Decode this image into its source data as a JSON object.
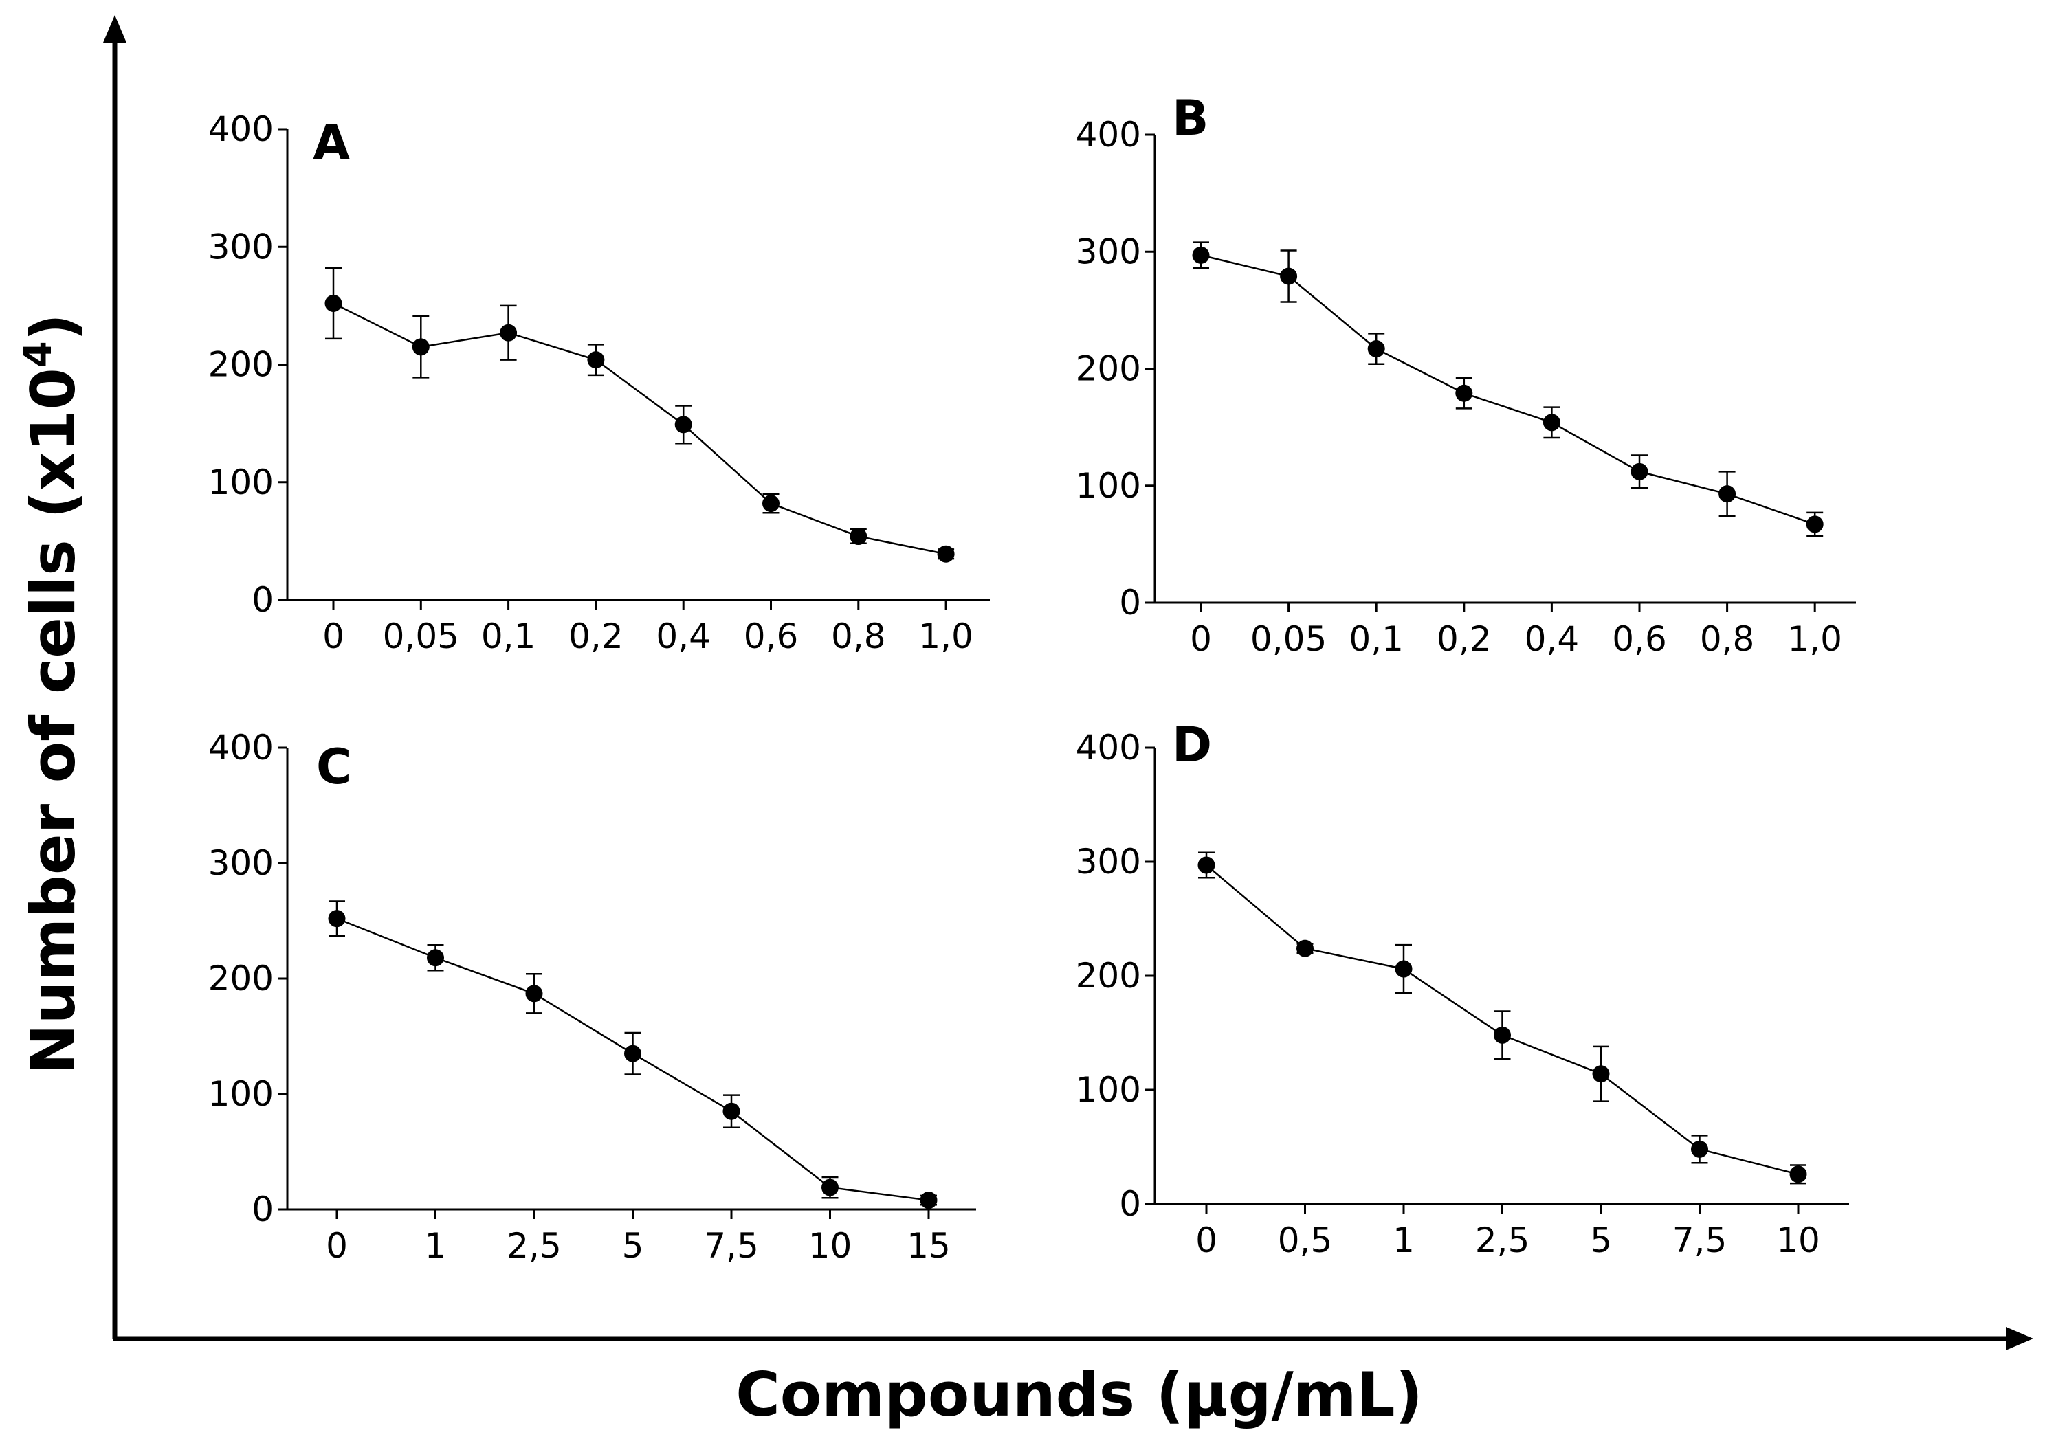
{
  "figure": {
    "ylabel": "Number of cells (x10",
    "ylabel_sup": "4",
    "ylabel_close": ")",
    "xlabel": "Compounds (µg/mL)"
  },
  "chart_data": [
    {
      "panel": "A",
      "type": "line",
      "categories": [
        "0",
        "0,05",
        "0,1",
        "0,2",
        "0,4",
        "0,6",
        "0,8",
        "1,0"
      ],
      "values": [
        252,
        215,
        227,
        204,
        149,
        82,
        54,
        39
      ],
      "errors": [
        30,
        26,
        23,
        13,
        16,
        8,
        6,
        4
      ],
      "yticks": [
        "0",
        "100",
        "200",
        "300",
        "400"
      ],
      "ylim": [
        0,
        400
      ]
    },
    {
      "panel": "B",
      "type": "line",
      "categories": [
        "0",
        "0,05",
        "0,1",
        "0,2",
        "0,4",
        "0,6",
        "0,8",
        "1,0"
      ],
      "values": [
        297,
        279,
        217,
        179,
        154,
        112,
        93,
        67
      ],
      "errors": [
        11,
        22,
        13,
        13,
        13,
        14,
        19,
        10
      ],
      "yticks": [
        "0",
        "100",
        "200",
        "300",
        "400"
      ],
      "ylim": [
        0,
        400
      ]
    },
    {
      "panel": "C",
      "type": "line",
      "categories": [
        "0",
        "1",
        "2,5",
        "5",
        "7,5",
        "10",
        "15"
      ],
      "values": [
        252,
        218,
        187,
        135,
        85,
        19,
        8
      ],
      "errors": [
        15,
        11,
        17,
        18,
        14,
        9,
        4
      ],
      "yticks": [
        "0",
        "100",
        "200",
        "300",
        "400"
      ],
      "ylim": [
        0,
        400
      ]
    },
    {
      "panel": "D",
      "type": "line",
      "categories": [
        "0",
        "0,5",
        "1",
        "2,5",
        "5",
        "7,5",
        "10"
      ],
      "values": [
        297,
        224,
        206,
        148,
        114,
        48,
        26
      ],
      "errors": [
        11,
        4,
        21,
        21,
        24,
        12,
        8
      ],
      "yticks": [
        "0",
        "100",
        "200",
        "300",
        "400"
      ],
      "ylim": [
        0,
        400
      ]
    }
  ]
}
